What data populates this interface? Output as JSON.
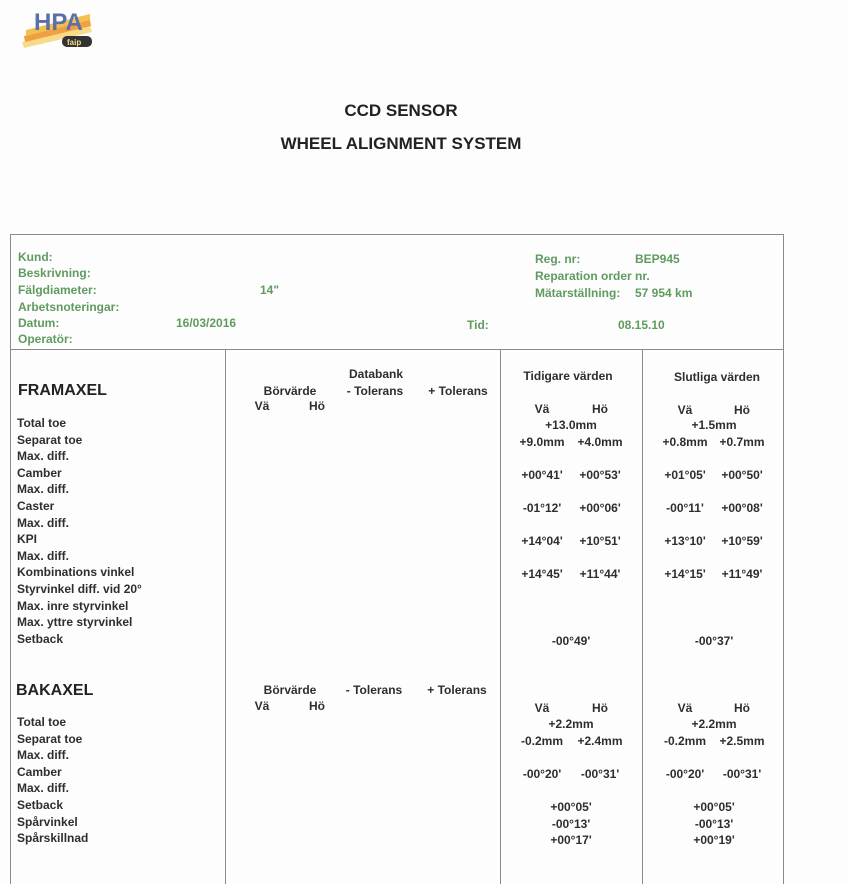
{
  "logo": {
    "text": "HPA",
    "badge": "faip",
    "colors": {
      "letters": "#5b6fa8",
      "stripes": [
        "#f2c14e",
        "#f0a040",
        "#f6dc8a"
      ]
    }
  },
  "title": {
    "line1": "CCD SENSOR",
    "line2": "WHEEL ALIGNMENT SYSTEM"
  },
  "info": {
    "kund_label": "Kund:",
    "beskrivning_label": "Beskrivning:",
    "falgdiameter_label": "Fälgdiameter:",
    "falgdiameter_value": "14\"",
    "arbetsnoteringar_label": "Arbetsnoteringar:",
    "datum_label": "Datum:",
    "datum_value": "16/03/2016",
    "operator_label": "Operatör:",
    "regnr_label": "Reg. nr:",
    "regnr_value": "BEP945",
    "reparation_label": "Reparation order nr.",
    "matar_label": "Mätarställning:",
    "matar_value": "57 954 km",
    "tid_label": "Tid:",
    "tid_value": "08.15.10",
    "color": "#5f9b5f"
  },
  "headers": {
    "databank": "Databank",
    "borvarde": "Börvärde",
    "minus_tol": "- Tolerans",
    "plus_tol": "+ Tolerans",
    "va": "Vä",
    "ho": "Hö",
    "tidigare": "Tidigare värden",
    "slutliga": "Slutliga värden"
  },
  "front": {
    "title": "FRAMAXEL",
    "rows": [
      {
        "label": "Total toe",
        "prev": [
          "+13.0mm"
        ],
        "final": [
          "+1.5mm"
        ]
      },
      {
        "label": "Separat toe",
        "prev": [
          "+9.0mm",
          "+4.0mm"
        ],
        "final": [
          "+0.8mm",
          "+0.7mm"
        ]
      },
      {
        "label": "Max. diff."
      },
      {
        "label": "Camber",
        "prev": [
          "+00°41'",
          "+00°53'"
        ],
        "final": [
          "+01°05'",
          "+00°50'"
        ]
      },
      {
        "label": "Max. diff."
      },
      {
        "label": "Caster",
        "prev": [
          "-01°12'",
          "+00°06'"
        ],
        "final": [
          "-00°11'",
          "+00°08'"
        ]
      },
      {
        "label": "Max. diff."
      },
      {
        "label": "KPI",
        "prev": [
          "+14°04'",
          "+10°51'"
        ],
        "final": [
          "+13°10'",
          "+10°59'"
        ]
      },
      {
        "label": "Max. diff."
      },
      {
        "label": "Kombinations vinkel",
        "prev": [
          "+14°45'",
          "+11°44'"
        ],
        "final": [
          "+14°15'",
          "+11°49'"
        ]
      },
      {
        "label": "Styrvinkel diff. vid 20°"
      },
      {
        "label": "Max. inre styrvinkel"
      },
      {
        "label": "Max. yttre styrvinkel"
      },
      {
        "label": "Setback",
        "prev": [
          "-00°49'"
        ],
        "final": [
          "-00°37'"
        ]
      }
    ]
  },
  "rear": {
    "title": "BAKAXEL",
    "rows": [
      {
        "label": "Total toe",
        "prev": [
          "+2.2mm"
        ],
        "final": [
          "+2.2mm"
        ]
      },
      {
        "label": "Separat toe",
        "prev": [
          "-0.2mm",
          "+2.4mm"
        ],
        "final": [
          "-0.2mm",
          "+2.5mm"
        ]
      },
      {
        "label": "Max. diff."
      },
      {
        "label": "Camber",
        "prev": [
          "-00°20'",
          "-00°31'"
        ],
        "final": [
          "-00°20'",
          "-00°31'"
        ]
      },
      {
        "label": "Max. diff."
      },
      {
        "label": "Setback",
        "prev": [
          "+00°05'"
        ],
        "final": [
          "+00°05'"
        ]
      },
      {
        "label": "Spårvinkel",
        "prev": [
          "-00°13'"
        ],
        "final": [
          "-00°13'"
        ]
      },
      {
        "label": "Spårskillnad",
        "prev": [
          "+00°17'"
        ],
        "final": [
          "+00°19'"
        ]
      }
    ]
  }
}
